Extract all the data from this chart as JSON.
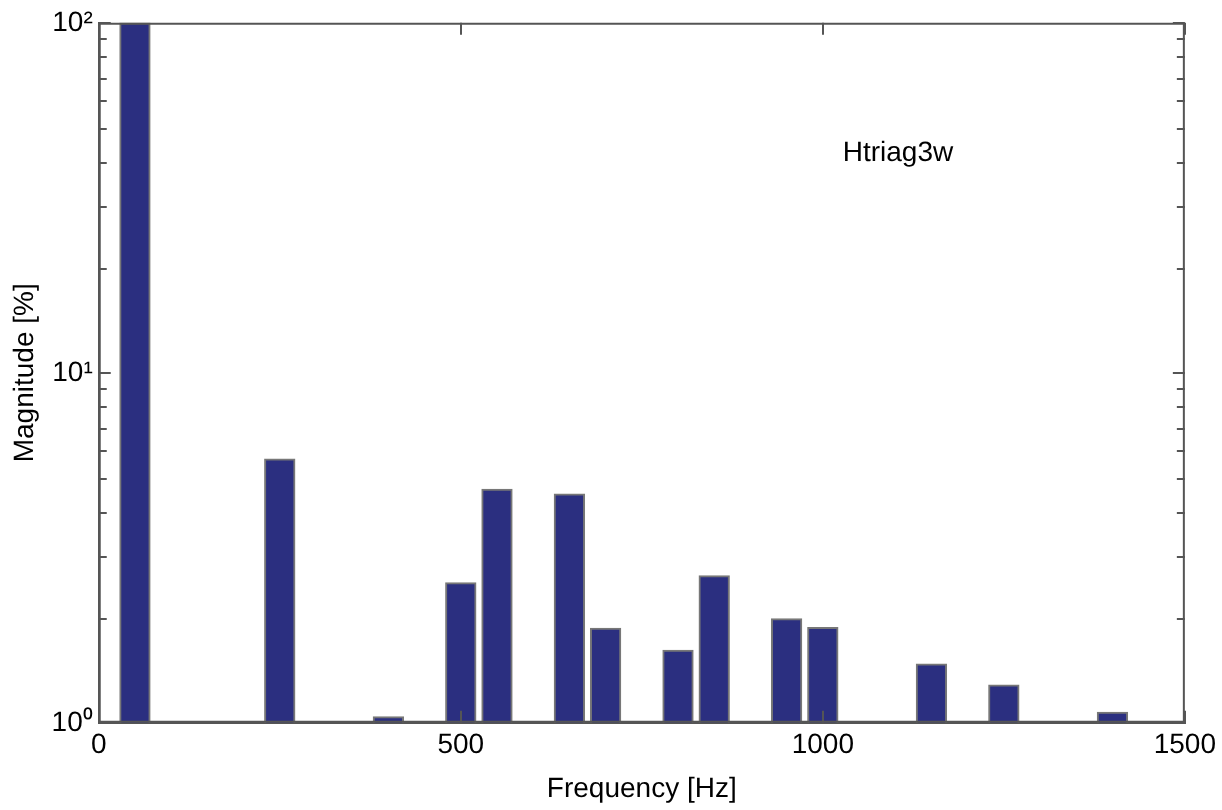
{
  "chart_data": {
    "type": "bar",
    "xlabel": "Frequency [Hz]",
    "ylabel": "Magnitude [%]",
    "annotations": [
      "Htriag3w"
    ],
    "x": [
      50,
      250,
      400,
      500,
      550,
      650,
      700,
      800,
      850,
      950,
      1000,
      1150,
      1250,
      1400
    ],
    "values": [
      100,
      5.67,
      1.04,
      2.51,
      4.64,
      4.5,
      1.86,
      1.61,
      2.63,
      1.98,
      1.87,
      1.47,
      1.28,
      1.07
    ],
    "color": "#2b2f80",
    "xlim": [
      0,
      1500
    ],
    "xticks": [
      0,
      500,
      1000,
      1500
    ],
    "ylim": [
      1,
      100
    ],
    "log": "y",
    "yticks": [
      {
        "value": 1,
        "label": "10⁰"
      },
      {
        "value": 2,
        "label": null
      },
      {
        "value": 3,
        "label": null
      },
      {
        "value": 4,
        "label": null
      },
      {
        "value": 5,
        "label": null
      },
      {
        "value": 6,
        "label": null
      },
      {
        "value": 7,
        "label": null
      },
      {
        "value": 8,
        "label": null
      },
      {
        "value": 9,
        "label": null
      },
      {
        "value": 10,
        "label": "10¹"
      },
      {
        "value": 20,
        "label": null
      },
      {
        "value": 30,
        "label": null
      },
      {
        "value": 40,
        "label": null
      },
      {
        "value": 50,
        "label": null
      },
      {
        "value": 60,
        "label": null
      },
      {
        "value": 70,
        "label": null
      },
      {
        "value": 80,
        "label": null
      },
      {
        "value": 90,
        "label": null
      },
      {
        "value": 100,
        "label": "10²"
      }
    ],
    "grid": false,
    "legend": false
  }
}
